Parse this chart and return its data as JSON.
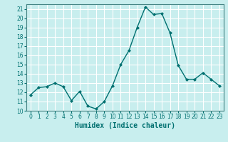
{
  "x": [
    0,
    1,
    2,
    3,
    4,
    5,
    6,
    7,
    8,
    9,
    10,
    11,
    12,
    13,
    14,
    15,
    16,
    17,
    18,
    19,
    20,
    21,
    22,
    23
  ],
  "y": [
    11.7,
    12.5,
    12.6,
    13.0,
    12.6,
    11.1,
    12.1,
    10.5,
    10.2,
    11.0,
    12.7,
    15.0,
    16.5,
    19.0,
    21.2,
    20.4,
    20.5,
    18.4,
    14.9,
    13.4,
    13.4,
    14.1,
    13.4,
    12.7
  ],
  "line_color": "#007070",
  "marker": "D",
  "marker_size": 2,
  "bg_color": "#c8eeee",
  "grid_color": "#ffffff",
  "xlabel": "Humidex (Indice chaleur)",
  "xlim": [
    -0.5,
    23.5
  ],
  "ylim": [
    10,
    21.5
  ],
  "yticks": [
    10,
    11,
    12,
    13,
    14,
    15,
    16,
    17,
    18,
    19,
    20,
    21
  ],
  "xticks": [
    0,
    1,
    2,
    3,
    4,
    5,
    6,
    7,
    8,
    9,
    10,
    11,
    12,
    13,
    14,
    15,
    16,
    17,
    18,
    19,
    20,
    21,
    22,
    23
  ],
  "tick_fontsize": 5.5,
  "xlabel_fontsize": 7,
  "line_width": 1.0,
  "spine_color": "#408080"
}
